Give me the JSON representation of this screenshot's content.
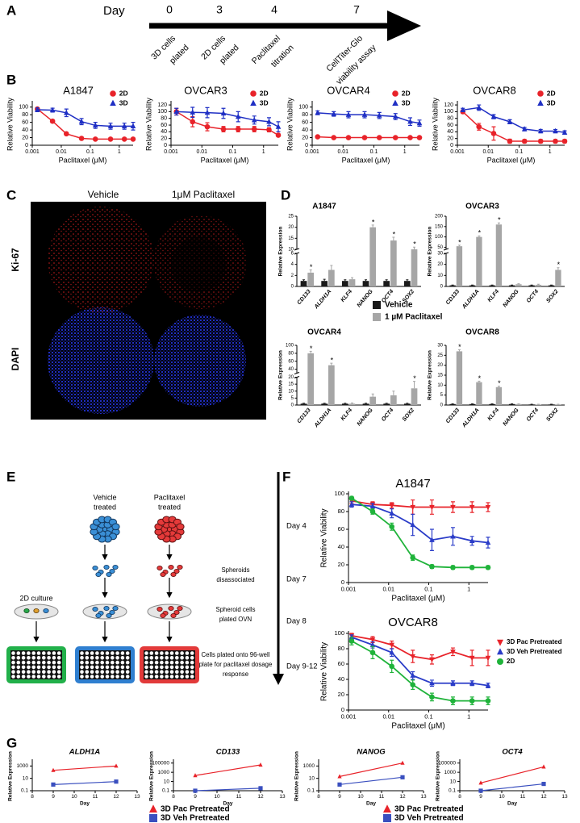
{
  "panel_labels": [
    "A",
    "B",
    "C",
    "D",
    "E",
    "F",
    "G"
  ],
  "timeline": {
    "day_label": "Day",
    "days": [
      0,
      3,
      4,
      7
    ],
    "events": [
      [
        "3D cells",
        "plated"
      ],
      [
        "2D cells",
        "plated"
      ],
      [
        "Paclitaxel",
        "titration"
      ],
      [
        "CellTiter-Glo",
        "viability assay"
      ]
    ]
  },
  "microscopy": {
    "columns": [
      "Vehicle",
      "1μM Paclitaxel"
    ],
    "rows": [
      "Ki-67",
      "DAPI"
    ]
  },
  "schematic": {
    "groups": [
      [
        "Vehicle",
        "treated"
      ],
      [
        "Paclitaxel",
        "treated"
      ]
    ],
    "control": "2D culture",
    "steps": [
      [
        "Spheroids",
        "disassociated"
      ],
      [
        "Spheroid cells",
        "plated OVN"
      ],
      [
        "Cells plated onto 96-well",
        "plate for paclitaxel dosage",
        "response"
      ]
    ],
    "days": [
      "Day 4",
      "Day 7",
      "Day 8",
      "Day 9-12"
    ]
  },
  "chart_data": [
    {
      "type": "line",
      "title": "A1847",
      "xlabel": "Paclitaxel (μM)",
      "ylabel": "Relative Viability",
      "xscale": "log",
      "x": [
        0.0015,
        0.005,
        0.015,
        0.05,
        0.15,
        0.5,
        1.5,
        3
      ],
      "xlim": [
        0.001,
        3
      ],
      "xticks": [
        0.001,
        0.01,
        0.1,
        1
      ],
      "ylim": [
        0,
        110
      ],
      "yticks": [
        0,
        20,
        40,
        60,
        80,
        100
      ],
      "series": [
        {
          "name": "2D",
          "color": "#e8232a",
          "marker": "circle",
          "values": [
            95,
            63,
            30,
            18,
            16,
            16,
            16,
            16
          ],
          "errors": [
            3,
            4,
            3,
            2,
            2,
            2,
            2,
            2
          ]
        },
        {
          "name": "3D",
          "color": "#1f2fc4",
          "marker": "triangle",
          "values": [
            93,
            92,
            85,
            62,
            52,
            50,
            50,
            50
          ],
          "errors": [
            5,
            5,
            10,
            8,
            8,
            8,
            8,
            10
          ]
        }
      ]
    },
    {
      "type": "line",
      "title": "OVCAR3",
      "xlabel": "Paclitaxel (μM)",
      "ylabel": "Relative Viability",
      "xscale": "log",
      "x": [
        0.0015,
        0.005,
        0.015,
        0.05,
        0.15,
        0.5,
        1.5,
        3
      ],
      "xlim": [
        0.001,
        3
      ],
      "xticks": [
        0.001,
        0.01,
        0.1,
        1
      ],
      "ylim": [
        0,
        125
      ],
      "yticks": [
        0,
        20,
        40,
        60,
        80,
        100,
        120
      ],
      "series": [
        {
          "name": "2D",
          "color": "#e8232a",
          "marker": "circle",
          "values": [
            100,
            70,
            55,
            48,
            48,
            48,
            46,
            30
          ],
          "errors": [
            10,
            15,
            12,
            8,
            8,
            8,
            6,
            4
          ]
        },
        {
          "name": "3D",
          "color": "#1f2fc4",
          "marker": "triangle",
          "values": [
            100,
            98,
            97,
            95,
            85,
            75,
            70,
            55
          ],
          "errors": [
            10,
            15,
            15,
            15,
            15,
            12,
            12,
            15
          ]
        }
      ]
    },
    {
      "type": "line",
      "title": "OVCAR4",
      "xlabel": "Paclitaxel (μM)",
      "ylabel": "Relative Viability",
      "xscale": "log",
      "x": [
        0.0015,
        0.005,
        0.015,
        0.05,
        0.15,
        0.5,
        1.5,
        3
      ],
      "xlim": [
        0.001,
        3
      ],
      "xticks": [
        0.001,
        0.01,
        0.1,
        1
      ],
      "ylim": [
        0,
        110
      ],
      "yticks": [
        0,
        20,
        40,
        60,
        80,
        100
      ],
      "series": [
        {
          "name": "2D",
          "color": "#e8232a",
          "marker": "circle",
          "values": [
            22,
            20,
            20,
            20,
            20,
            20,
            20,
            20
          ],
          "errors": [
            3,
            2,
            2,
            2,
            2,
            2,
            2,
            2
          ]
        },
        {
          "name": "3D",
          "color": "#1f2fc4",
          "marker": "triangle",
          "values": [
            85,
            82,
            80,
            80,
            78,
            75,
            62,
            58
          ],
          "errors": [
            5,
            6,
            8,
            8,
            8,
            8,
            10,
            8
          ]
        }
      ]
    },
    {
      "type": "line",
      "title": "OVCAR8",
      "xlabel": "Paclitaxel (μM)",
      "ylabel": "Relative Viability",
      "xscale": "log",
      "x": [
        0.0015,
        0.005,
        0.015,
        0.05,
        0.15,
        0.5,
        1.5,
        3
      ],
      "xlim": [
        0.001,
        3
      ],
      "xticks": [
        0.001,
        0.01,
        0.1,
        1
      ],
      "ylim": [
        0,
        125
      ],
      "yticks": [
        0,
        20,
        40,
        60,
        80,
        100,
        120
      ],
      "series": [
        {
          "name": "2D",
          "color": "#e8232a",
          "marker": "circle",
          "values": [
            100,
            55,
            35,
            12,
            12,
            12,
            12,
            12
          ],
          "errors": [
            5,
            10,
            20,
            6,
            5,
            5,
            5,
            5
          ]
        },
        {
          "name": "3D",
          "color": "#1f2fc4",
          "marker": "triangle",
          "values": [
            105,
            112,
            85,
            70,
            48,
            42,
            42,
            38
          ],
          "errors": [
            5,
            8,
            6,
            6,
            5,
            5,
            5,
            5
          ]
        }
      ]
    },
    {
      "type": "bar",
      "title": "A1847",
      "ylabel": "Relative Expression",
      "categories": [
        "CD133",
        "ALDH1A",
        "KLF4",
        "NANOG",
        "OCT4",
        "SOX2"
      ],
      "ylim": [
        0,
        25
      ],
      "ybreak": [
        6,
        10
      ],
      "yticks": [
        0,
        2,
        4,
        6,
        10,
        15,
        20,
        25
      ],
      "series": [
        {
          "name": "Vehicle",
          "color": "#1a1a1a",
          "values": [
            1,
            1,
            1,
            1,
            1,
            1
          ],
          "errors": [
            0.2,
            0.3,
            0.2,
            0.2,
            0.2,
            0.2
          ]
        },
        {
          "name": "1 µM Paclitaxel",
          "color": "#a6a6a6",
          "values": [
            2.5,
            3,
            1.3,
            20,
            14,
            10
          ],
          "errors": [
            0.5,
            0.8,
            0.3,
            1,
            1.5,
            1
          ]
        }
      ],
      "annotations": [
        "*",
        null,
        null,
        "*",
        "*",
        "*"
      ]
    },
    {
      "type": "bar",
      "title": "OVCAR3",
      "ylabel": "Relative Expression",
      "categories": [
        "CD133",
        "ALDH1A",
        "KLF4",
        "NANOG",
        "OCT4",
        "SOX2"
      ],
      "ylim": [
        0,
        200
      ],
      "ybreak": [
        30,
        40
      ],
      "yticks": [
        0,
        10,
        20,
        30,
        50,
        100,
        150,
        200
      ],
      "series": [
        {
          "values": [
            1,
            1,
            1,
            1,
            1,
            1
          ],
          "color": "#1a1a1a",
          "errors": [
            0.3,
            0.3,
            0.3,
            0.3,
            0.3,
            0.3
          ]
        },
        {
          "values": [
            55,
            100,
            160,
            2,
            1.5,
            15
          ],
          "color": "#a6a6a6",
          "errors": [
            5,
            5,
            8,
            0.5,
            0.5,
            2
          ]
        }
      ],
      "annotations": [
        "*",
        "*",
        "*",
        null,
        null,
        "*"
      ]
    },
    {
      "type": "bar",
      "title": "OVCAR4",
      "ylabel": "Relative Expression",
      "categories": [
        "CD133",
        "ALDH1A",
        "KLF4",
        "NANOG",
        "OCT4",
        "SOX2"
      ],
      "ylim": [
        0,
        100
      ],
      "ybreak": [
        20,
        30
      ],
      "yticks": [
        0,
        5,
        10,
        15,
        20,
        40,
        60,
        80,
        100
      ],
      "series": [
        {
          "values": [
            1,
            1,
            1,
            1,
            1,
            1
          ],
          "color": "#1a1a1a",
          "errors": [
            0.3,
            0.3,
            0.3,
            0.3,
            0.3,
            0.3
          ]
        },
        {
          "values": [
            80,
            50,
            1,
            6,
            7,
            12
          ],
          "color": "#a6a6a6",
          "errors": [
            5,
            5,
            0.5,
            2,
            3,
            5
          ]
        }
      ],
      "annotations": [
        "*",
        "*",
        null,
        null,
        null,
        "*"
      ]
    },
    {
      "type": "bar",
      "title": "OVCAR8",
      "ylabel": "Relative Expression",
      "categories": [
        "CD133",
        "ALDH1A",
        "KLF4",
        "NANOG",
        "OCT4",
        "SOX2"
      ],
      "ylim": [
        0,
        30
      ],
      "yticks": [
        0,
        5,
        10,
        15,
        20,
        25,
        30
      ],
      "series": [
        {
          "values": [
            0.5,
            0.5,
            0.5,
            0.5,
            0.3,
            0.3
          ],
          "color": "#1a1a1a",
          "errors": [
            0.1,
            0.1,
            0.1,
            0.1,
            0.1,
            0.1
          ]
        },
        {
          "values": [
            27,
            11.5,
            9,
            0.5,
            0.3,
            0.3
          ],
          "color": "#a6a6a6",
          "errors": [
            0.8,
            0.5,
            0.5,
            0.1,
            0.1,
            0.1
          ]
        }
      ],
      "annotations": [
        "*",
        "*",
        "*",
        null,
        null,
        null
      ]
    },
    {
      "type": "line",
      "title": "A1847",
      "xlabel": "Paclitaxel (μM)",
      "ylabel": "Relative Viability",
      "xscale": "log",
      "x": [
        0.0012,
        0.004,
        0.012,
        0.04,
        0.12,
        0.4,
        1.2,
        3
      ],
      "xlim": [
        0.001,
        3
      ],
      "xticks": [
        0.001,
        0.01,
        0.1,
        1
      ],
      "ylim": [
        0,
        100
      ],
      "yticks": [
        0,
        20,
        40,
        60,
        80,
        100
      ],
      "series": [
        {
          "color": "#e8232a",
          "marker": "triangle-down",
          "values": [
            92,
            88,
            87,
            85,
            85,
            85,
            85,
            85
          ],
          "errors": [
            3,
            3,
            3,
            8,
            8,
            6,
            6,
            5
          ]
        },
        {
          "color": "#2a3cc8",
          "marker": "triangle",
          "values": [
            88,
            86,
            78,
            65,
            48,
            52,
            47,
            45
          ],
          "errors": [
            3,
            3,
            5,
            12,
            12,
            10,
            5,
            6
          ]
        },
        {
          "color": "#1fb33a",
          "marker": "circle",
          "values": [
            95,
            80,
            63,
            28,
            18,
            17,
            17,
            17
          ],
          "errors": [
            2,
            3,
            4,
            3,
            2,
            2,
            2,
            2
          ]
        }
      ]
    },
    {
      "type": "line",
      "title": "OVCAR8",
      "xlabel": "Paclitaxel (μM)",
      "ylabel": "Relative Viability",
      "xscale": "log",
      "x": [
        0.0012,
        0.004,
        0.012,
        0.04,
        0.12,
        0.4,
        1.2,
        3
      ],
      "xlim": [
        0.001,
        3
      ],
      "xticks": [
        0.001,
        0.01,
        0.1,
        1
      ],
      "ylim": [
        0,
        100
      ],
      "yticks": [
        0,
        20,
        40,
        60,
        80,
        100
      ],
      "series": [
        {
          "name": "3D Pac Pretreated",
          "color": "#e8232a",
          "marker": "triangle-down",
          "values": [
            97,
            92,
            85,
            70,
            66,
            76,
            68,
            68
          ],
          "errors": [
            3,
            4,
            5,
            8,
            6,
            5,
            10,
            10
          ]
        },
        {
          "name": "3D Veh Pretreated",
          "color": "#2a3cc8",
          "marker": "triangle",
          "values": [
            95,
            85,
            75,
            45,
            35,
            35,
            35,
            32
          ],
          "errors": [
            3,
            4,
            5,
            5,
            4,
            3,
            3,
            3
          ]
        },
        {
          "name": "2D",
          "color": "#1fb33a",
          "marker": "circle",
          "values": [
            90,
            75,
            57,
            33,
            17,
            12,
            12,
            12
          ],
          "errors": [
            5,
            8,
            8,
            6,
            5,
            5,
            5,
            5
          ]
        }
      ]
    },
    {
      "type": "line",
      "title": "ALDH1A",
      "xlabel": "Day",
      "ylabel": "Relative Expression",
      "yscale": "log",
      "x": [
        9,
        12
      ],
      "xlim": [
        8,
        13
      ],
      "xticks": [
        8,
        9,
        10,
        11,
        12,
        13
      ],
      "ylim": [
        0.1,
        5000
      ],
      "yticks": [
        0.1,
        10,
        1000
      ],
      "series": [
        {
          "name": "3D Pac Pretreated",
          "color": "#e8232a",
          "marker": "triangle",
          "values": [
            200,
            1000
          ]
        },
        {
          "name": "3D Veh Pretreated",
          "color": "#3a4fbf",
          "marker": "square",
          "values": [
            1,
            3
          ]
        }
      ]
    },
    {
      "type": "line",
      "title": "CD133",
      "xlabel": "Day",
      "ylabel": "Relative Expression",
      "yscale": "log",
      "x": [
        9,
        12
      ],
      "xlim": [
        8,
        13
      ],
      "xticks": [
        8,
        9,
        10,
        11,
        12,
        13
      ],
      "ylim": [
        0.1,
        200000
      ],
      "yticks": [
        0.1,
        10,
        1000,
        100000
      ],
      "series": [
        {
          "color": "#e8232a",
          "marker": "triangle",
          "values": [
            200,
            40000
          ]
        },
        {
          "color": "#3a4fbf",
          "marker": "square",
          "values": [
            0.1,
            0.35
          ]
        }
      ]
    },
    {
      "type": "line",
      "title": "NANOG",
      "xlabel": "Day",
      "ylabel": "Relative Expression",
      "yscale": "log",
      "x": [
        9,
        12
      ],
      "xlim": [
        8,
        13
      ],
      "xticks": [
        8,
        9,
        10,
        11,
        12,
        13
      ],
      "ylim": [
        0.1,
        5000
      ],
      "yticks": [
        0.1,
        10,
        1000
      ],
      "series": [
        {
          "name": "3D Pac Pretreated",
          "color": "#e8232a",
          "marker": "triangle",
          "values": [
            20,
            3000
          ]
        },
        {
          "name": "3D Veh Pretreated",
          "color": "#3a4fbf",
          "marker": "square",
          "values": [
            1,
            15
          ]
        }
      ]
    },
    {
      "type": "line",
      "title": "OCT4",
      "xlabel": "Day",
      "ylabel": "Relative Expression",
      "yscale": "log",
      "x": [
        9,
        12
      ],
      "xlim": [
        8,
        13
      ],
      "xticks": [
        8,
        9,
        10,
        11,
        12,
        13
      ],
      "ylim": [
        0.1,
        200000
      ],
      "yticks": [
        0.1,
        10,
        1000,
        100000
      ],
      "series": [
        {
          "color": "#e8232a",
          "marker": "triangle",
          "values": [
            5,
            15000
          ]
        },
        {
          "color": "#3a4fbf",
          "marker": "square",
          "values": [
            0.1,
            3
          ]
        }
      ]
    }
  ]
}
